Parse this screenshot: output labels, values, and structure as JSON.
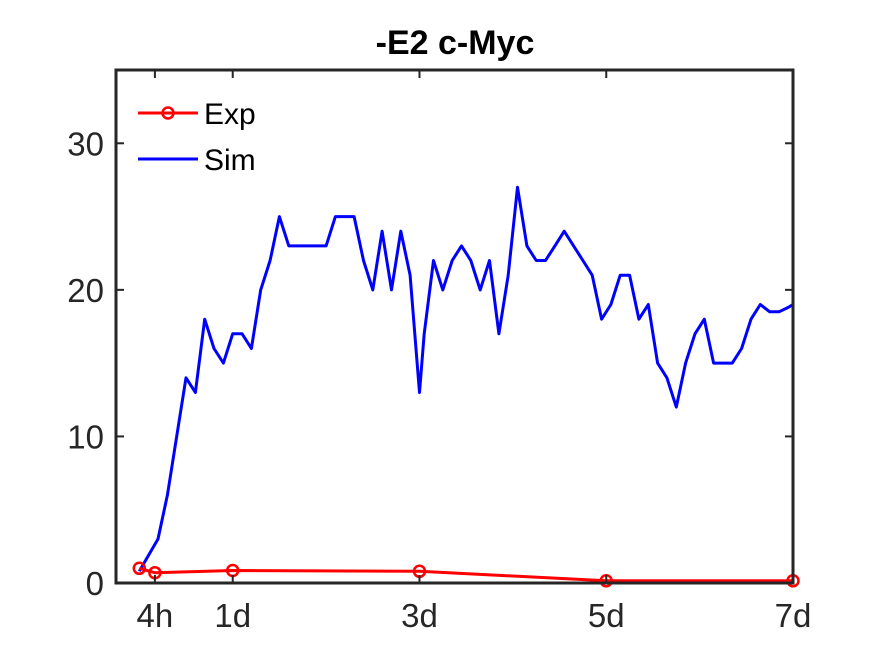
{
  "chart_data": {
    "type": "line",
    "title": "-E2 c-Myc",
    "xlabel": "",
    "ylabel": "",
    "xlim": [
      -0.25,
      7
    ],
    "ylim": [
      0,
      35
    ],
    "x_ticks": [
      0.1667,
      1,
      3,
      5,
      7
    ],
    "x_tick_labels": [
      "4h",
      "1d",
      "3d",
      "5d",
      "7d"
    ],
    "y_ticks": [
      0,
      10,
      20,
      30
    ],
    "y_tick_labels": [
      "0",
      "10",
      "20",
      "30"
    ],
    "grid": false,
    "legend": "top-left",
    "series": [
      {
        "name": "Exp",
        "color": "#ff0000",
        "marker": "circle",
        "x": [
          0,
          0.1667,
          1,
          3,
          5,
          7
        ],
        "y": [
          1.0,
          0.7,
          0.85,
          0.8,
          0.15,
          0.15
        ]
      },
      {
        "name": "Sim",
        "color": "#0000ff",
        "marker": "none",
        "x": [
          0,
          0.2,
          0.3,
          0.4,
          0.5,
          0.6,
          0.7,
          0.8,
          0.9,
          1.0,
          1.1,
          1.2,
          1.3,
          1.4,
          1.5,
          1.6,
          1.7,
          1.8,
          2.0,
          2.1,
          2.2,
          2.3,
          2.4,
          2.5,
          2.6,
          2.7,
          2.8,
          2.9,
          3.0,
          3.05,
          3.15,
          3.25,
          3.35,
          3.45,
          3.55,
          3.65,
          3.75,
          3.85,
          3.95,
          4.05,
          4.15,
          4.25,
          4.35,
          4.45,
          4.55,
          4.65,
          4.75,
          4.85,
          4.95,
          5.05,
          5.15,
          5.25,
          5.35,
          5.45,
          5.55,
          5.65,
          5.75,
          5.85,
          5.95,
          6.05,
          6.15,
          6.25,
          6.35,
          6.45,
          6.55,
          6.65,
          6.75,
          6.85,
          6.95,
          7.0
        ],
        "y": [
          0.8,
          3.0,
          6.0,
          10.0,
          14.0,
          13.0,
          18.0,
          16.0,
          15.0,
          17.0,
          17.0,
          16.0,
          20.0,
          22.0,
          25.0,
          23.0,
          23.0,
          23.0,
          23.0,
          25.0,
          25.0,
          25.0,
          22.0,
          20.0,
          24.0,
          20.0,
          24.0,
          21.0,
          13.0,
          17.0,
          22.0,
          20.0,
          22.0,
          23.0,
          22.0,
          20.0,
          22.0,
          17.0,
          21.0,
          27.0,
          23.0,
          22.0,
          22.0,
          23.0,
          24.0,
          23.0,
          22.0,
          21.0,
          18.0,
          19.0,
          21.0,
          21.0,
          18.0,
          19.0,
          15.0,
          14.0,
          12.0,
          15.0,
          17.0,
          18.0,
          15.0,
          15.0,
          15.0,
          16.0,
          18.0,
          19.0,
          18.5,
          18.5,
          18.8,
          19.0
        ]
      }
    ]
  }
}
